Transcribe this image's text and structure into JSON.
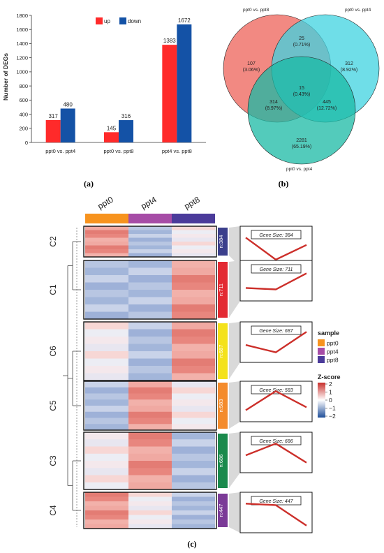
{
  "panel_labels": {
    "a": "(a)",
    "b": "(b)",
    "c": "(c)"
  },
  "colors": {
    "up": "#ff2a2a",
    "down": "#1452a6",
    "ppt0": "#f7931e",
    "ppt4": "#a64ca6",
    "ppt8": "#4b3b9a",
    "venn1": "#ef6b63",
    "venn2": "#3fd3e0",
    "venn3": "#19b9a4",
    "heat_high": "#d9413f",
    "heat_low": "#4f74b8"
  },
  "chart_data": [
    {
      "type": "bar",
      "title": "",
      "xlabel": "",
      "ylabel": "Number of DEGs",
      "ylim": [
        0,
        1800
      ],
      "yticks": [
        "0",
        "200",
        "400",
        "600",
        "800",
        "1000",
        "1200",
        "1400",
        "1600",
        "1800"
      ],
      "categories": [
        "ppt0 vs. ppt4",
        "ppt0 vs. ppt8",
        "ppt4 vs. ppt8"
      ],
      "series": [
        {
          "name": "up",
          "values": [
            317,
            145,
            1383
          ]
        },
        {
          "name": "down",
          "values": [
            480,
            316,
            1672
          ]
        }
      ],
      "legend": "top"
    },
    {
      "type": "venn",
      "sets": [
        "ppt0 vs. ppt8",
        "ppt0 vs. ppt4",
        "ppt0 vs. ppt4"
      ],
      "regions": [
        {
          "label": "107",
          "pct": "(3.06%)"
        },
        {
          "label": "25",
          "pct": "(0.71%)"
        },
        {
          "label": "312",
          "pct": "(8.92%)"
        },
        {
          "label": "15",
          "pct": "(0.43%)"
        },
        {
          "label": "314",
          "pct": "(8.97%)"
        },
        {
          "label": "445",
          "pct": "(12.72%)"
        },
        {
          "label": "2281",
          "pct": "(65.19%)"
        }
      ]
    },
    {
      "type": "heatmap",
      "columns": [
        "ppt0",
        "ppt4",
        "ppt8"
      ],
      "clusters": [
        {
          "name": "C2",
          "size_label": "n:384",
          "gene_size": "Gene Size: 384",
          "color": "#3b3f8c",
          "pattern": [
            "high",
            "low",
            "mid"
          ],
          "trend": [
            0.85,
            0.1,
            0.6
          ]
        },
        {
          "name": "C1",
          "size_label": "n:711",
          "gene_size": "Gene Size: 711",
          "color": "#e32a33",
          "pattern": [
            "low",
            "low",
            "high"
          ],
          "trend": [
            0.3,
            0.25,
            0.8
          ]
        },
        {
          "name": "C6",
          "size_label": "n:687",
          "gene_size": "Gene Size: 687",
          "color": "#f4e21b",
          "pattern": [
            "mid",
            "low",
            "high"
          ],
          "trend": [
            0.45,
            0.2,
            0.9
          ]
        },
        {
          "name": "C5",
          "size_label": "n:583",
          "gene_size": "Gene Size: 583",
          "color": "#f48b2c",
          "pattern": [
            "low",
            "high",
            "mid"
          ],
          "trend": [
            0.25,
            0.9,
            0.35
          ]
        },
        {
          "name": "C3",
          "size_label": "n:686",
          "gene_size": "Gene Size: 686",
          "color": "#1a8a4c",
          "pattern": [
            "mid",
            "high",
            "low"
          ],
          "trend": [
            0.45,
            0.85,
            0.2
          ]
        },
        {
          "name": "C4",
          "size_label": "n:447",
          "gene_size": "Gene Size: 447",
          "color": "#7b3a97",
          "pattern": [
            "high",
            "mid",
            "low"
          ],
          "trend": [
            0.85,
            0.8,
            0.1
          ]
        }
      ],
      "legend": {
        "sample_title": "sample",
        "samples": [
          "ppt0",
          "ppt4",
          "ppt8"
        ],
        "zscore_title": "Z-score",
        "zscore_ticks": [
          "2",
          "1",
          "0",
          "−1",
          "−2"
        ]
      }
    }
  ]
}
